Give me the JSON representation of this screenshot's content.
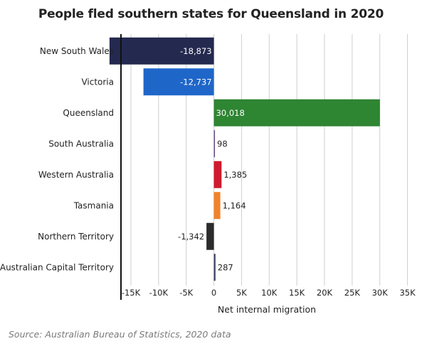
{
  "title": "People fled southern states for Queensland in 2020",
  "source": "Source: Australian Bureau of Statistics, 2020 data",
  "chart_data": {
    "type": "bar",
    "orientation": "horizontal",
    "title": "People fled southern states for Queensland in 2020",
    "xlabel": "Net internal migration",
    "ylabel": "",
    "categories": [
      "New South Wales",
      "Victoria",
      "Queensland",
      "South Australia",
      "Western Australia",
      "Tasmania",
      "Northern Territory",
      "Australian Capital Territory"
    ],
    "values": [
      -18873,
      -12737,
      30018,
      98,
      1385,
      1164,
      -1342,
      287
    ],
    "data_labels": [
      "-18,873",
      "-12,737",
      "30,018",
      "98",
      "1,385",
      "1,164",
      "-1,342",
      "287"
    ],
    "colors": [
      "#24294f",
      "#1f66c9",
      "#2e8532",
      "#6b4f8a",
      "#cf1a2e",
      "#f0832b",
      "#2b2b2b",
      "#3b4463"
    ],
    "xlim": [
      -16800,
      35700
    ],
    "x_ticks": [
      -15000,
      -10000,
      -5000,
      0,
      5000,
      10000,
      15000,
      20000,
      25000,
      30000,
      35000
    ],
    "x_tick_labels": [
      "-15K",
      "-10K",
      "-5K",
      "0",
      "5K",
      "10K",
      "15K",
      "20K",
      "25K",
      "30K",
      "35K"
    ],
    "grid": true,
    "legend": "none"
  }
}
